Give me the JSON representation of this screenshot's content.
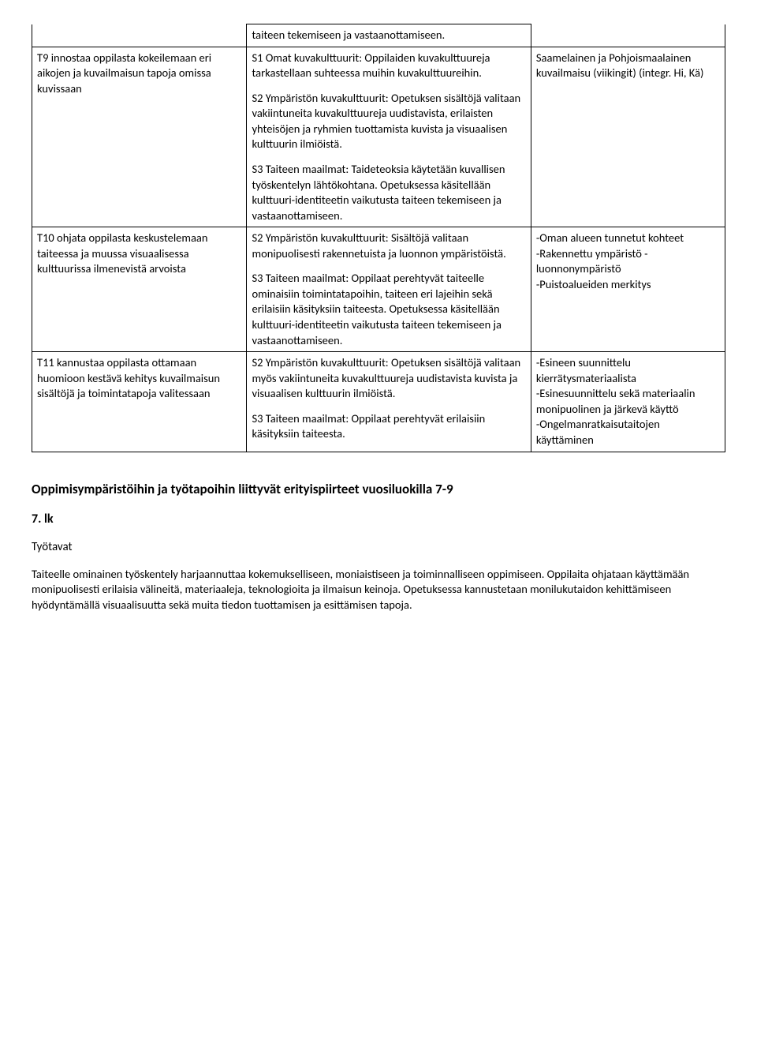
{
  "table": {
    "colWidths": [
      "31%",
      "41%",
      "28%"
    ],
    "rows": [
      {
        "c1": "",
        "c2_paras": [
          "taiteen tekemiseen ja vastaanottamiseen."
        ],
        "c3": "",
        "c1_noTop": true,
        "c3_noTop": true
      },
      {
        "c1": "T9 innostaa oppilasta kokeilemaan eri aikojen ja kuvailmaisun tapoja omissa kuvissaan",
        "c2_paras": [
          "S1 Omat kuvakulttuurit: Oppilaiden kuvakulttuureja tarkastellaan suhteessa muihin kuvakulttuureihin.",
          "S2 Ympäristön kuvakulttuurit: Opetuksen sisältöjä valitaan vakiintuneita kuvakulttuureja uudistavista, erilaisten yhteisöjen ja ryhmien tuottamista kuvista ja visuaalisen kulttuurin ilmiöistä.",
          "S3 Taiteen maailmat: Taideteoksia käytetään kuvallisen työskentelyn lähtökohtana. Opetuksessa käsitellään kulttuuri-identiteetin vaikutusta taiteen tekemiseen ja vastaanottamiseen."
        ],
        "c3": "Saamelainen ja Pohjoismaalainen kuvailmaisu (viikingit) (integr. Hi, Kä)"
      },
      {
        "c1": "T10 ohjata oppilasta keskustelemaan taiteessa ja muussa visuaalisessa kulttuurissa ilmenevistä arvoista",
        "c2_paras": [
          "S2 Ympäristön kuvakulttuurit: Sisältöjä valitaan monipuolisesti rakennetuista ja luonnon ympäristöistä.",
          "S3 Taiteen maailmat: Oppilaat perehtyvät taiteelle ominaisiin toimintatapoihin, taiteen eri lajeihin sekä erilaisiin käsityksiin taiteesta. Opetuksessa käsitellään kulttuuri-identiteetin vaikutusta taiteen tekemiseen ja vastaanottamiseen."
        ],
        "c3": "-Oman alueen tunnetut kohteet\n-Rakennettu ympäristö - luonnonympäristö\n-Puistoalueiden merkitys"
      },
      {
        "c1": "T11 kannustaa oppilasta ottamaan huomioon kestävä kehitys kuvailmaisun sisältöjä ja toimintatapoja valitessaan",
        "c2_paras": [
          "S2 Ympäristön kuvakulttuurit: Opetuksen sisältöjä valitaan myös vakiintuneita kuvakulttuureja uudistavista kuvista ja visuaalisen kulttuurin ilmiöistä.",
          "S3 Taiteen maailmat: Oppilaat perehtyvät erilaisiin käsityksiin taiteesta."
        ],
        "c3": "-Esineen suunnittelu kierrätysmateriaalista\n-Esinesuunnittelu sekä materiaalin monipuolinen ja järkevä käyttö\n-Ongelmanratkaisutaitojen käyttäminen"
      }
    ]
  },
  "heading": "Oppimisympäristöihin ja työtapoihin liittyvät erityispiirteet vuosiluokilla 7-9",
  "grade": "7. lk",
  "subheading": "Työtavat",
  "paragraph": "Taiteelle ominainen työskentely harjaannuttaa kokemukselliseen, moniaistiseen ja toiminnalliseen oppimiseen. Oppilaita ohjataan käyttämään monipuolisesti erilaisia välineitä, materiaaleja, teknologioita ja ilmaisun keinoja. Opetuksessa kannustetaan monilukutaidon kehittämiseen hyödyntämällä visuaalisuutta sekä muita tiedon tuottamisen ja esittämisen tapoja."
}
